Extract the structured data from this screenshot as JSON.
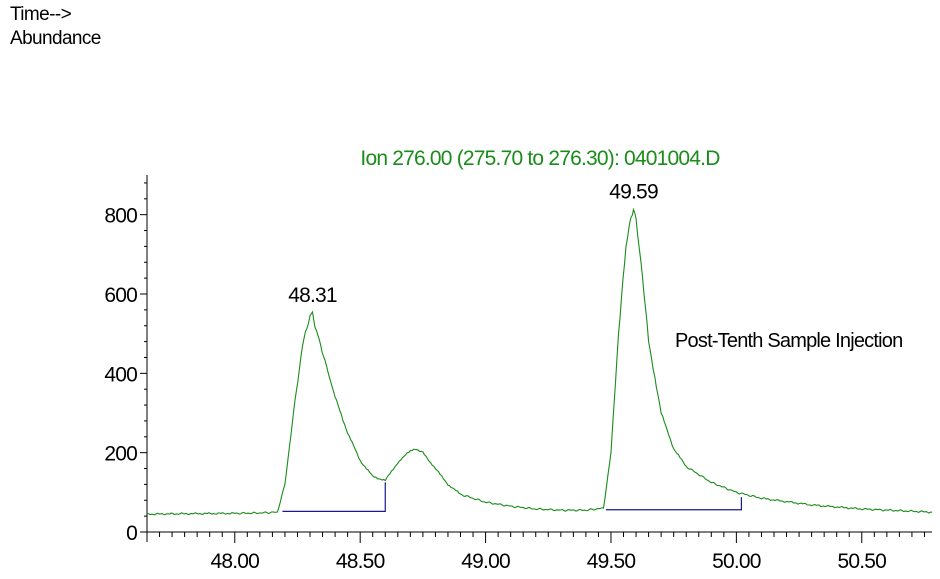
{
  "header": {
    "x_label": "Time-->",
    "y_label": "Abundance"
  },
  "colors": {
    "trace": "#1a8c1a",
    "baseline": "#1a1a8c",
    "axis": "#000000"
  },
  "chart_data": {
    "type": "line",
    "title": "Ion 276.00 (275.70 to 276.30): 0401004.D",
    "xlabel": "Time-->",
    "ylabel": "Abundance",
    "xlim": [
      47.65,
      50.78
    ],
    "ylim": [
      0,
      900
    ],
    "x_ticks": [
      48.0,
      48.5,
      49.0,
      49.5,
      50.0,
      50.5
    ],
    "x_tick_labels": [
      "48.00",
      "48.50",
      "49.00",
      "49.50",
      "50.00",
      "50.50"
    ],
    "y_ticks": [
      0,
      200,
      400,
      600,
      800
    ],
    "y_tick_labels": [
      "0",
      "200",
      "400",
      "600",
      "800"
    ],
    "series": [
      {
        "x": [
          47.65,
          47.8,
          48.0,
          48.1,
          48.17,
          48.2,
          48.24,
          48.27,
          48.3,
          48.31,
          48.32,
          48.33,
          48.36,
          48.4,
          48.45,
          48.5,
          48.55,
          48.6,
          48.65,
          48.7,
          48.72,
          48.75,
          48.8,
          48.85,
          48.9,
          49.0,
          49.1,
          49.2,
          49.3,
          49.4,
          49.47,
          49.5,
          49.53,
          49.56,
          49.58,
          49.59,
          49.6,
          49.62,
          49.65,
          49.7,
          49.75,
          49.8,
          49.9,
          50.0,
          50.1,
          50.3,
          50.5,
          50.78
        ],
        "y": [
          45,
          46,
          47,
          48,
          50,
          120,
          330,
          470,
          545,
          550,
          520,
          500,
          430,
          340,
          250,
          180,
          140,
          130,
          175,
          205,
          210,
          200,
          160,
          120,
          95,
          75,
          65,
          58,
          55,
          55,
          60,
          200,
          500,
          720,
          800,
          810,
          790,
          680,
          480,
          300,
          210,
          165,
          125,
          100,
          85,
          68,
          58,
          50
        ]
      }
    ],
    "baselines": [
      {
        "x": [
          48.19,
          48.6
        ],
        "y": [
          52,
          52
        ],
        "end_y": 125
      },
      {
        "x": [
          49.48,
          50.02
        ],
        "y": [
          56,
          56
        ],
        "end_y": 88
      }
    ],
    "peak_labels": [
      {
        "x": 48.31,
        "y": 550,
        "text": "48.31"
      },
      {
        "x": 49.59,
        "y": 810,
        "text": "49.59"
      }
    ],
    "annotation": "Post-Tenth Sample Injection"
  }
}
